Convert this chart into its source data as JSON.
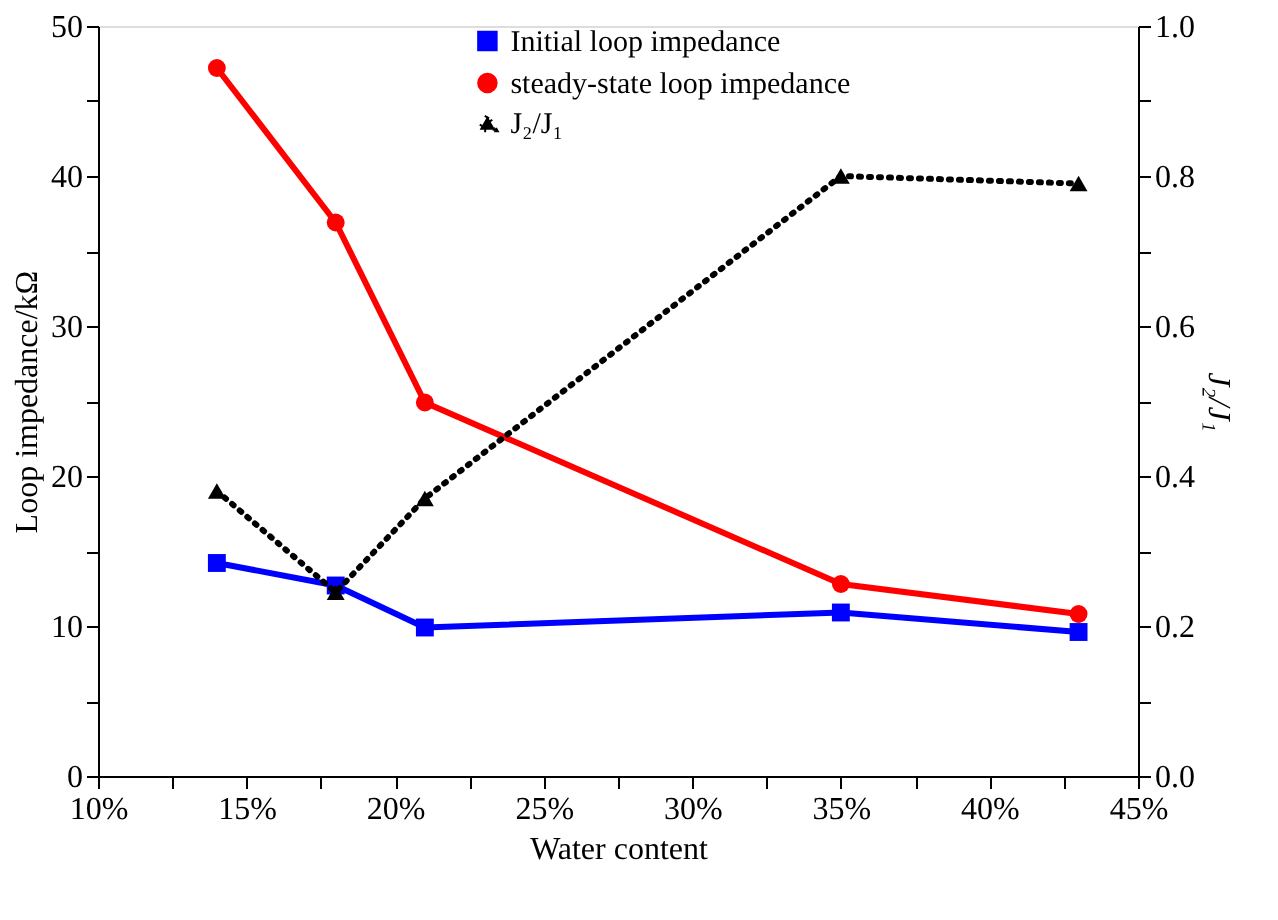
{
  "chart_data": {
    "type": "line",
    "xlabel": "Water content",
    "ylabel": "Loop impedance/kΩ",
    "y2label": "J₂/J₁",
    "x": [
      14,
      18,
      21,
      35,
      43
    ],
    "xlim": [
      10,
      45
    ],
    "xticks": [
      {
        "value": 10,
        "label": "10%"
      },
      {
        "value": 12.5,
        "label": null
      },
      {
        "value": 15,
        "label": "15%"
      },
      {
        "value": 17.5,
        "label": null
      },
      {
        "value": 20,
        "label": "20%"
      },
      {
        "value": 22.5,
        "label": null
      },
      {
        "value": 25,
        "label": "25%"
      },
      {
        "value": 27.5,
        "label": null
      },
      {
        "value": 30,
        "label": "30%"
      },
      {
        "value": 32.5,
        "label": null
      },
      {
        "value": 35,
        "label": "35%"
      },
      {
        "value": 37.5,
        "label": null
      },
      {
        "value": 40,
        "label": "40%"
      },
      {
        "value": 42.5,
        "label": null
      },
      {
        "value": 45,
        "label": "45%"
      }
    ],
    "ylim": [
      0,
      50
    ],
    "yticks": [
      0,
      {
        "value": 5,
        "label": null
      },
      10,
      {
        "value": 15,
        "label": null
      },
      20,
      {
        "value": 25,
        "label": null
      },
      30,
      {
        "value": 35,
        "label": null
      },
      40,
      {
        "value": 45,
        "label": null
      },
      50
    ],
    "y2lim": [
      0,
      1
    ],
    "y2ticks": [
      {
        "value": 0,
        "label": "0.0"
      },
      {
        "value": 0.1,
        "label": null
      },
      0.2,
      {
        "value": 0.3,
        "label": null
      },
      0.4,
      {
        "value": 0.5,
        "label": null
      },
      0.6,
      {
        "value": 0.7,
        "label": null
      },
      0.8,
      {
        "value": 0.9,
        "label": null
      },
      {
        "value": 1,
        "label": "1.0"
      }
    ],
    "series": [
      {
        "name": "Initial loop impedance",
        "color": "#0000ff",
        "marker": "square",
        "line_style": "solid",
        "values": [
          14.2,
          12.7,
          9.9,
          10.9,
          9.6
        ]
      },
      {
        "name": "steady-state loop impedance",
        "color": "#ff0000",
        "marker": "circle",
        "line_style": "solid",
        "values": [
          47.2,
          36.9,
          24.9,
          12.8,
          10.8
        ]
      },
      {
        "name": "J₂/J₁",
        "color": "#000000",
        "marker": "triangle",
        "line_style": "dotted",
        "axis": "y2",
        "values": [
          0.38,
          0.245,
          0.37,
          0.8,
          0.79
        ]
      }
    ],
    "grid": false,
    "legend": "top"
  }
}
